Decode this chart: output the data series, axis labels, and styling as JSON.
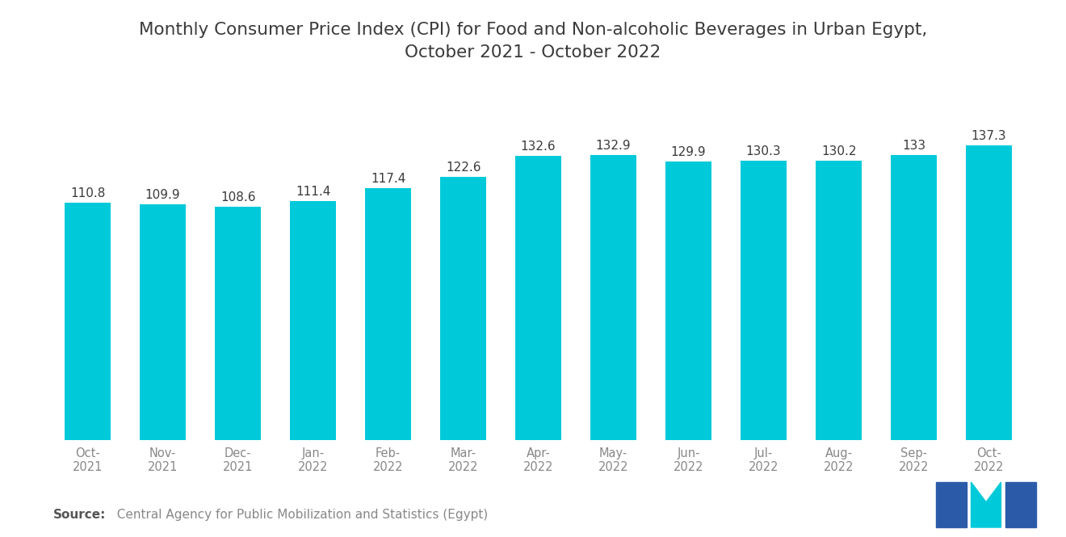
{
  "title": "Monthly Consumer Price Index (CPI) for Food and Non-alcoholic Beverages in Urban Egypt,\nOctober 2021 - October 2022",
  "categories": [
    "Oct-\n2021",
    "Nov-\n2021",
    "Dec-\n2021",
    "Jan-\n2022",
    "Feb-\n2022",
    "Mar-\n2022",
    "Apr-\n2022",
    "May-\n2022",
    "Jun-\n2022",
    "Jul-\n2022",
    "Aug-\n2022",
    "Sep-\n2022",
    "Oct-\n2022"
  ],
  "values": [
    110.8,
    109.9,
    108.6,
    111.4,
    117.4,
    122.6,
    132.6,
    132.9,
    129.9,
    130.3,
    130.2,
    133.0,
    137.3
  ],
  "bar_color": "#00CADA",
  "value_labels": [
    "110.8",
    "109.9",
    "108.6",
    "111.4",
    "117.4",
    "122.6",
    "132.6",
    "132.9",
    "129.9",
    "130.3",
    "130.2",
    "133",
    "137.3"
  ],
  "ylim": [
    0,
    155
  ],
  "title_fontsize": 15.5,
  "label_fontsize": 11,
  "tick_fontsize": 10.5,
  "source_fontsize": 11,
  "background_color": "#ffffff",
  "title_color": "#3a3a3a",
  "tick_color": "#888888",
  "value_label_color": "#3a3a3a",
  "source_bold": "Source:",
  "source_rest": "  Central Agency for Public Mobilization and Statistics (Egypt)",
  "logo_blue": "#2B5BA8",
  "logo_teal": "#00CADA"
}
